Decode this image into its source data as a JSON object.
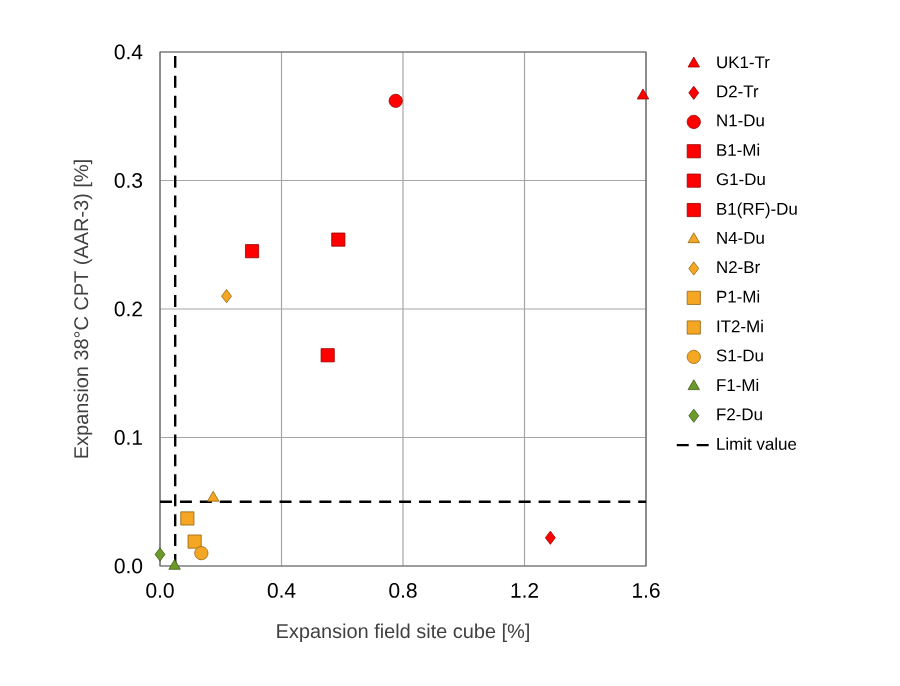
{
  "chart_data": {
    "type": "scatter",
    "xlabel": "Expansion field site cube [%]",
    "ylabel": "Expansion 38°C CPT (AAR-3) [%]",
    "xlim": [
      0,
      1.6
    ],
    "ylim": [
      0,
      0.4
    ],
    "xticks": [
      {
        "value": 0,
        "label": "0.0"
      },
      0.4,
      0.8,
      1.2,
      1.6
    ],
    "yticks": [
      {
        "value": 0,
        "label": "0.0"
      },
      0.1,
      0.2,
      0.3,
      0.4
    ],
    "grid": true,
    "legend": "right",
    "series": [
      {
        "name": "UK1-Tr",
        "color": "#ff0000",
        "marker": "triangle",
        "x": [
          1.59
        ],
        "values": [
          0.366
        ]
      },
      {
        "name": "D2-Tr",
        "color": "#ff0000",
        "marker": "diamond",
        "x": [
          1.285
        ],
        "values": [
          0.022
        ]
      },
      {
        "name": "N1-Du",
        "color": "#ff0000",
        "marker": "circle",
        "x": [
          0.776
        ],
        "values": [
          0.362
        ]
      },
      {
        "name": "B1-Mi",
        "color": "#ff0000",
        "marker": "square",
        "x": [
          0.587
        ],
        "values": [
          0.254
        ]
      },
      {
        "name": "G1-Du",
        "color": "#ff0000",
        "marker": "square",
        "x": [
          0.552
        ],
        "values": [
          0.164
        ]
      },
      {
        "name": "B1(RF)-Du",
        "color": "#ff0000",
        "marker": "square",
        "x": [
          0.303
        ],
        "values": [
          0.245
        ]
      },
      {
        "name": "N4-Du",
        "color": "#f5a623",
        "marker": "triangle",
        "x": [
          0.175
        ],
        "values": [
          0.053
        ]
      },
      {
        "name": "N2-Br",
        "color": "#f5a623",
        "marker": "diamond",
        "x": [
          0.219
        ],
        "values": [
          0.21
        ]
      },
      {
        "name": "P1-Mi",
        "color": "#f5a623",
        "marker": "square",
        "x": [
          0.114
        ],
        "values": [
          0.019
        ]
      },
      {
        "name": "IT2-Mi",
        "color": "#f5a623",
        "marker": "square",
        "x": [
          0.09
        ],
        "values": [
          0.037
        ]
      },
      {
        "name": "S1-Du",
        "color": "#f5a623",
        "marker": "circle",
        "x": [
          0.136
        ],
        "values": [
          0.01
        ]
      },
      {
        "name": "F1-Mi",
        "color": "#6a9a2a",
        "marker": "triangle",
        "x": [
          0.048
        ],
        "values": [
          0.0
        ]
      },
      {
        "name": "F2-Du",
        "color": "#6a9a2a",
        "marker": "diamond",
        "x": [
          0.0
        ],
        "values": [
          0.009
        ]
      },
      {
        "name": "Limit value",
        "type": "line",
        "color": "#000000",
        "marker": "none",
        "line_style": "dashed",
        "x": [
          0.05,
          0.05,
          null,
          0,
          1.6
        ],
        "values": [
          0,
          0.4,
          null,
          0.05,
          0.05
        ]
      }
    ]
  }
}
